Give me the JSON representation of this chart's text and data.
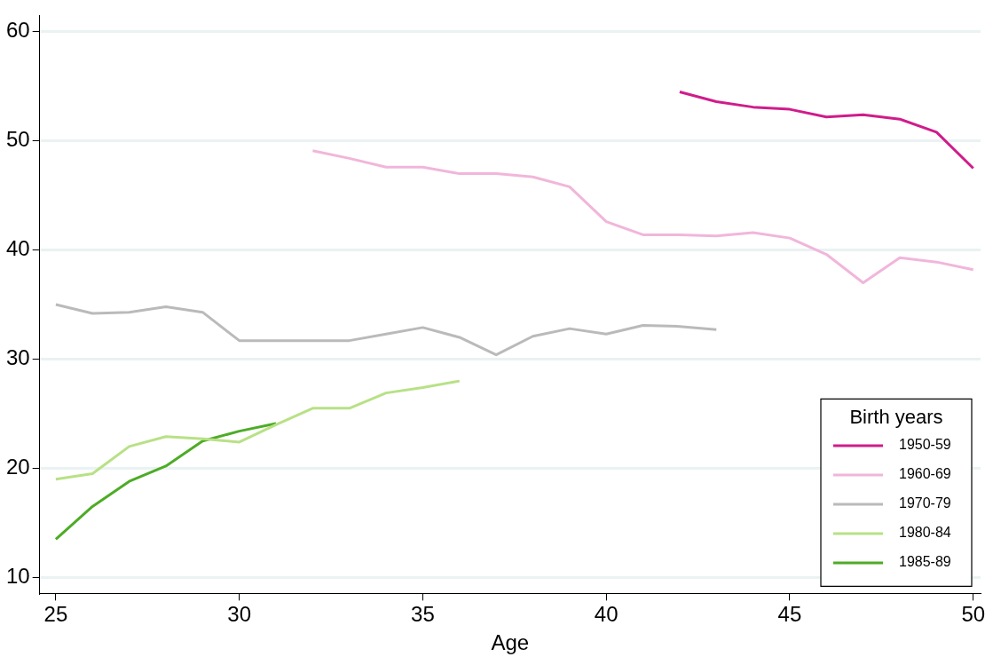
{
  "chart_data": {
    "type": "line",
    "xlabel": "Age",
    "legend_title": "Birth years",
    "legend": "bottom right",
    "grid": "y",
    "marker": "none",
    "line_style": "solid",
    "xlim": [
      24.56,
      50.2
    ],
    "xticks": [
      25,
      30,
      35,
      40,
      45,
      50
    ],
    "ylim": [
      8.53,
      61.5
    ],
    "yticks": [
      10,
      20,
      30,
      40,
      50,
      60
    ],
    "series": [
      {
        "name": "1950-59",
        "color": "#d01c8b",
        "x": [
          42,
          43,
          44,
          45,
          46,
          47,
          48,
          49,
          50
        ],
        "values": [
          54.5,
          53.6,
          53.1,
          52.9,
          52.2,
          52.4,
          52.0,
          50.8,
          47.5
        ]
      },
      {
        "name": "1960-69",
        "color": "#f1b6da",
        "x": [
          32,
          33,
          34,
          35,
          36,
          37,
          38,
          39,
          40,
          41,
          42,
          43,
          44,
          45,
          46,
          47,
          48,
          49,
          50
        ],
        "values": [
          49.1,
          48.4,
          47.6,
          47.6,
          47.0,
          47.0,
          46.7,
          45.8,
          42.6,
          41.4,
          41.4,
          41.3,
          41.6,
          41.1,
          39.6,
          37.0,
          39.3,
          38.9,
          38.2
        ]
      },
      {
        "name": "1970-79",
        "color": "#bababa",
        "x": [
          25,
          26,
          27,
          28,
          29,
          30,
          31,
          32,
          33,
          34,
          35,
          36,
          37,
          38,
          39,
          40,
          41,
          42,
          43
        ],
        "values": [
          35.0,
          34.2,
          34.3,
          34.8,
          34.3,
          31.7,
          31.7,
          31.7,
          31.7,
          32.3,
          32.9,
          32.0,
          30.4,
          32.1,
          32.8,
          32.3,
          33.1,
          33.0,
          32.7
        ]
      },
      {
        "name": "1980-84",
        "color": "#b8e186",
        "x": [
          25,
          26,
          27,
          28,
          29,
          30,
          31,
          32,
          33,
          34,
          35,
          36
        ],
        "values": [
          19.0,
          19.5,
          22.0,
          22.9,
          22.7,
          22.4,
          24.0,
          25.5,
          25.5,
          26.9,
          27.4,
          28.0
        ]
      },
      {
        "name": "1985-89",
        "color": "#4dac26",
        "x": [
          25,
          26,
          27,
          28,
          29,
          30,
          31
        ],
        "values": [
          13.5,
          16.5,
          18.8,
          20.2,
          22.5,
          23.4,
          24.1
        ]
      }
    ]
  }
}
